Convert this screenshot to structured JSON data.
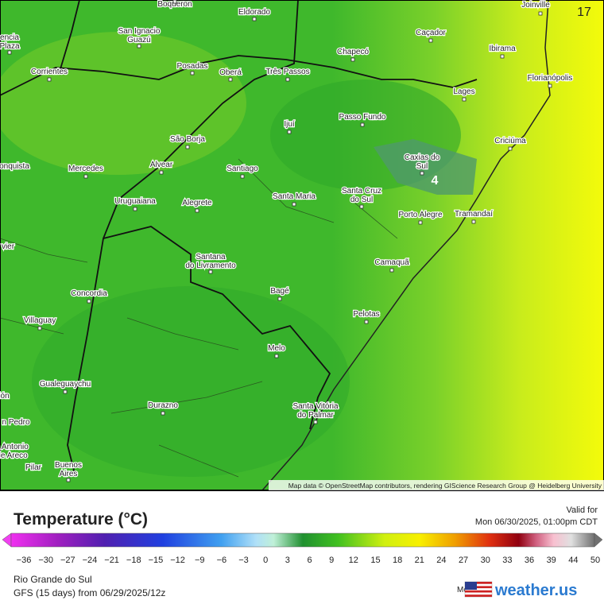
{
  "map": {
    "cities": [
      [
        "Boqueron"
      ],
      [
        "Eldorado"
      ],
      [
        "San Ignacio",
        "Guazú"
      ],
      [
        "encia",
        "Plaza"
      ],
      [
        "Corrientes"
      ],
      [
        "Posadas"
      ],
      [
        "Oberá"
      ],
      [
        "Três Passos"
      ],
      [
        "Chapecó"
      ],
      [
        "Caçador"
      ],
      [
        "Ibirama"
      ],
      [
        "Joinville"
      ],
      [
        "Florianópolis"
      ],
      [
        "Lages"
      ],
      [
        "Passo Fundo"
      ],
      [
        "Ijuí"
      ],
      [
        "São Borja"
      ],
      [
        "Criciúma"
      ],
      [
        "Alvear"
      ],
      [
        "Mercedes"
      ],
      [
        "onquista"
      ],
      [
        "Santiago"
      ],
      [
        "Caxias do",
        "Sul"
      ],
      [
        "Santa Maria"
      ],
      [
        "Santa Cruz",
        "do Sul"
      ],
      [
        "Uruguaiana"
      ],
      [
        "Alegrete"
      ],
      [
        "Porto Alegre"
      ],
      [
        "Tramandaí"
      ],
      [
        "vier"
      ],
      [
        "Santana",
        "do Livramento"
      ],
      [
        "Camaquã"
      ],
      [
        "Concordia"
      ],
      [
        "Bagé"
      ],
      [
        "Villaguay"
      ],
      [
        "Pelotas"
      ],
      [
        "Melo"
      ],
      [
        "Gualeguaychu"
      ],
      [
        "ión"
      ],
      [
        "Durazno"
      ],
      [
        "Santa Vitória",
        "do Palmar"
      ],
      [
        "n Pedro"
      ],
      [
        "n Antonio",
        "de Areco"
      ],
      [
        "Pilar"
      ],
      [
        "Buenos",
        "Aires"
      ]
    ],
    "values": [
      17,
      4
    ],
    "attribution": "Map data © OpenStreetMap contributors, rendering GIScience Research Group @ Heidelberg University"
  },
  "legend": {
    "title": "Temperature (°C)",
    "ticks": [
      "−36",
      "−30",
      "−27",
      "−24",
      "−21",
      "−18",
      "−15",
      "−12",
      "−9",
      "−6",
      "−3",
      "0",
      "3",
      "6",
      "9",
      "12",
      "15",
      "18",
      "21",
      "24",
      "27",
      "30",
      "33",
      "36",
      "39",
      "44",
      "50"
    ]
  },
  "footer": {
    "valid_label": "Valid for",
    "valid_time": "Mon 06/30/2025, 01:00pm CDT",
    "region": "Rio Grande do Sul",
    "run": "GFS (15 days) from  06/29/2025/12z",
    "model_label": "Model:",
    "brand": "weather.us"
  }
}
